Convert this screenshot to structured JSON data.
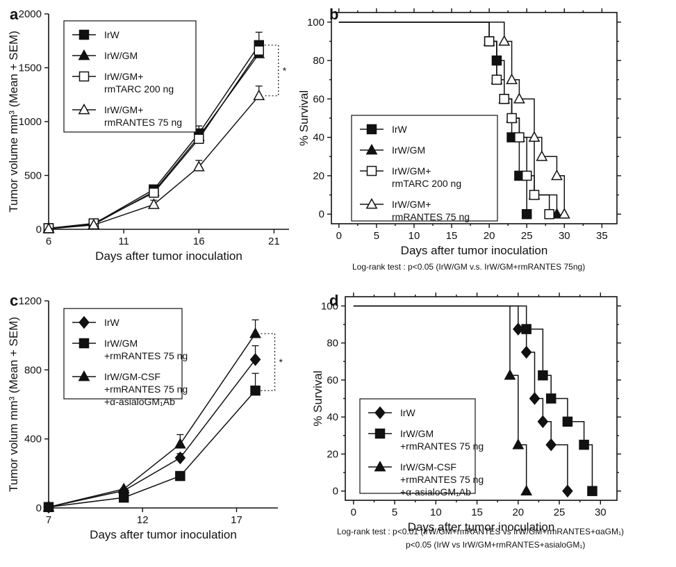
{
  "chart_data": [
    {
      "panel": "a",
      "type": "line",
      "xlabel": "Days after tumor inoculation",
      "ylabel": "Tumor volume mm³ (Mean + SEM)",
      "xticks": [
        6,
        11,
        16,
        21
      ],
      "yticks": [
        0,
        500,
        1000,
        1500,
        2000
      ],
      "xlim": [
        6,
        22
      ],
      "ylim": [
        0,
        2000
      ],
      "significance": "*",
      "series": [
        {
          "name": "IrW",
          "marker": "square-filled",
          "x": [
            6,
            9,
            13,
            16,
            20
          ],
          "y": [
            10,
            50,
            370,
            890,
            1710
          ],
          "err": [
            0,
            0,
            15,
            70,
            120
          ]
        },
        {
          "name": "IrW/GM",
          "marker": "triangle-filled",
          "x": [
            6,
            9,
            13,
            16,
            20
          ],
          "y": [
            10,
            45,
            350,
            860,
            1630
          ],
          "err": [
            0,
            0,
            15,
            60,
            0
          ]
        },
        {
          "name": "IrW/GM+ rmTARC 200 ng",
          "marker": "square-open",
          "x": [
            6,
            9,
            13,
            16,
            20
          ],
          "y": [
            10,
            55,
            340,
            840,
            1660
          ],
          "err": [
            0,
            0,
            0,
            0,
            0
          ]
        },
        {
          "name": "IrW/GM+ rmRANTES 75 ng",
          "marker": "triangle-open",
          "x": [
            6,
            9,
            13,
            16,
            20
          ],
          "y": [
            5,
            40,
            230,
            580,
            1240
          ],
          "err": [
            0,
            0,
            40,
            60,
            90
          ]
        }
      ]
    },
    {
      "panel": "b",
      "type": "line",
      "xlabel": "Days after tumor inoculation",
      "ylabel": "% Survival",
      "xticks": [
        0,
        5,
        10,
        15,
        20,
        25,
        30,
        35
      ],
      "yticks": [
        0,
        20,
        40,
        60,
        80,
        100
      ],
      "xlim": [
        -1,
        37
      ],
      "ylim": [
        -5,
        105
      ],
      "footnote": [
        "Log-rank test : p<0.05  (IrW/GM v.s. IrW/GM+rmRANTES 75ng)"
      ],
      "series": [
        {
          "name": "IrW",
          "marker": "square-filled",
          "x": [
            20,
            21,
            22,
            23,
            24,
            25
          ],
          "y": [
            90,
            80,
            60,
            40,
            20,
            0
          ]
        },
        {
          "name": "IrW/GM",
          "marker": "triangle-filled",
          "x": [
            20,
            21,
            22,
            23,
            24,
            26,
            29
          ],
          "y": [
            90,
            70,
            60,
            50,
            40,
            10,
            0
          ]
        },
        {
          "name": "IrW/GM+ rmTARC 200 ng",
          "marker": "square-open",
          "x": [
            20,
            21,
            22,
            23,
            24,
            25,
            26,
            28
          ],
          "y": [
            90,
            70,
            60,
            50,
            40,
            20,
            10,
            0
          ]
        },
        {
          "name": "IrW/GM+ rmRANTES 75 ng",
          "marker": "triangle-open",
          "x": [
            22,
            23,
            24,
            26,
            27,
            29,
            30
          ],
          "y": [
            90,
            70,
            60,
            40,
            30,
            20,
            0
          ]
        }
      ]
    },
    {
      "panel": "c",
      "type": "line",
      "xlabel": "Days after tumor inoculation",
      "ylabel": "Tumor volum mm³ (Mean + SEM)",
      "xticks": [
        7,
        12,
        17
      ],
      "yticks": [
        0,
        400,
        800,
        1200
      ],
      "xlim": [
        7,
        19.2
      ],
      "ylim": [
        0,
        1200
      ],
      "significance": "*",
      "series": [
        {
          "name": "IrW",
          "marker": "diamond-filled",
          "x": [
            7,
            11,
            14,
            18
          ],
          "y": [
            5,
            100,
            290,
            860
          ],
          "err": [
            0,
            0,
            25,
            80
          ]
        },
        {
          "name": "IrW/GM +rmRANTES 75 ng",
          "marker": "square-filled",
          "x": [
            7,
            11,
            14,
            18
          ],
          "y": [
            5,
            60,
            185,
            680
          ],
          "err": [
            0,
            0,
            20,
            100
          ]
        },
        {
          "name": "IrW/GM-CSF +rmRANTES 75 ng +α-asialoGM₁Ab",
          "marker": "triangle-filled",
          "x": [
            7,
            11,
            14,
            18
          ],
          "y": [
            5,
            110,
            370,
            1010
          ],
          "err": [
            0,
            0,
            55,
            80
          ]
        }
      ]
    },
    {
      "panel": "d",
      "type": "line",
      "xlabel": "Days after tumor inoculation",
      "ylabel": "% Survival",
      "xticks": [
        0,
        5,
        10,
        15,
        20,
        25,
        30
      ],
      "yticks": [
        0,
        20,
        40,
        60,
        80,
        100
      ],
      "xlim": [
        -1,
        32
      ],
      "ylim": [
        -5,
        105
      ],
      "footnote": [
        "Log-rank test :  p<0.01    (IrW/GM+rmRANTES vs IrW/GM+rmRANTES+αaGM₁)",
        "p<0.05   (IrW vs IrW/GM+rmRANTES+asialoGM₁)"
      ],
      "series": [
        {
          "name": "IrW",
          "marker": "diamond-filled",
          "x": [
            20,
            21,
            22,
            23,
            24,
            26
          ],
          "y": [
            87.5,
            75,
            50,
            37.5,
            25,
            0
          ]
        },
        {
          "name": "IrW/GM +rmRANTES 75 ng",
          "marker": "square-filled",
          "x": [
            21,
            23,
            24,
            26,
            28,
            29
          ],
          "y": [
            87.5,
            62.5,
            50,
            37.5,
            25,
            0
          ]
        },
        {
          "name": "IrW/GM-CSF +rmRANTES 75 ng +α-asialoGM₁Ab",
          "marker": "triangle-filled",
          "x": [
            19,
            20,
            21
          ],
          "y": [
            62.5,
            25,
            0
          ]
        }
      ]
    }
  ]
}
